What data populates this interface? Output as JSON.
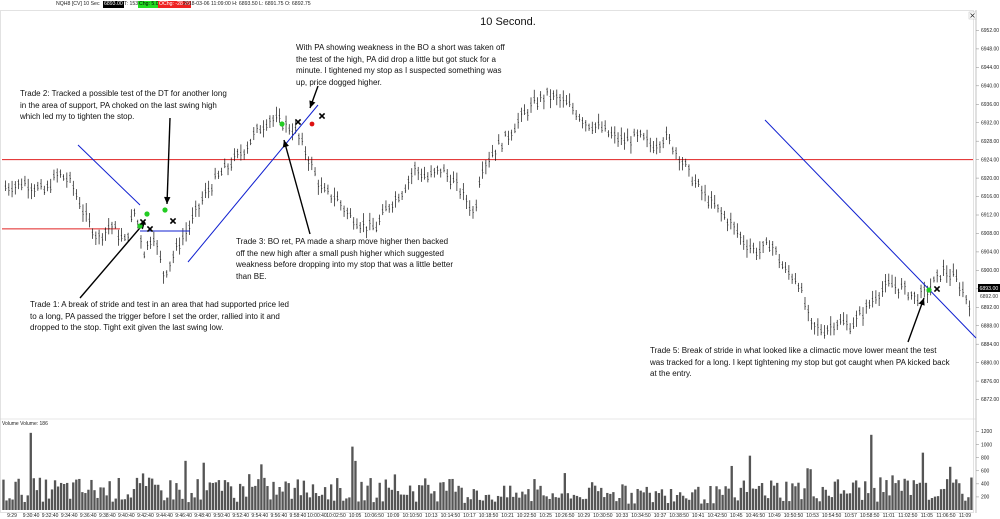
{
  "header": {
    "left_text": "NQH8 [CV] 10 Sec",
    "price_box": "6893.00",
    "tick_text": "T: 153",
    "chg_box": "Chg: 5.00",
    "ochg_box": "OChg: -28.25",
    "ohlc_text": "2018-03-06 11:09:00 H: 6893.50 L: 6891.75 O: 6892.75"
  },
  "chart_title": "10 Second.",
  "volume_label": "Volume  Volume: 186",
  "colors": {
    "price_bar": "#111111",
    "support_line": "#e02020",
    "trend_line": "#1020d0",
    "entry_green": "#22cc22",
    "entry_red": "#dd1111",
    "volume_bar": "#555555",
    "header_green": "#22dd22",
    "header_red": "#ee2222"
  },
  "annotations": {
    "trade1": "Trade 1:  A break of stride and test in an area that had supported price led to a long, PA passed the trigger before I set the order, rallied into it and dropped to the stop.  Tight exit given the last swing low.",
    "trade2": "Trade 2:  Tracked a possible test of the DT for another long in the area of support,  PA choked on the last swing high which led my to tighten the stop.",
    "trade3": "Trade 3:  BO ret, PA made a sharp move higher then backed off the new high after a small push higher which suggested weakness before dropping into my stop that was a little better than BE.",
    "trade4": "With PA showing weakness in the BO a short was taken off the test of the high, PA did drop a little but got stuck for a minute.  I tightened my stop as I suspected something was up, price dogged higher.",
    "trade5": "Trade 5:  Break of stride in what looked like a climactic move lower meant the test was tracked for a long.  I kept tightening my stop but got caught when PA kicked back at the entry."
  },
  "chart_data": {
    "type": "bar",
    "title": "10 Second.",
    "ylim": [
      6868,
      6956
    ],
    "y_ticks": [
      6952,
      6948,
      6944,
      6940,
      6936,
      6932,
      6928,
      6924,
      6920,
      6916,
      6912,
      6908,
      6904,
      6900,
      6896,
      6892,
      6888,
      6884,
      6880,
      6876,
      6872
    ],
    "current_price": "6893.00",
    "current_price_alt": "6892.00",
    "x_labels": [
      "9:29",
      "9:30:40",
      "9:32:40",
      "9:34:40",
      "9:36:40",
      "9:38:40",
      "9:40:40",
      "9:42:40",
      "9:44:40",
      "9:46:40",
      "9:48:40",
      "9:50:40",
      "9:52:40",
      "9:54:40",
      "9:56:40",
      "9:58:40",
      "10:00:40",
      "10:02:50",
      "10:05",
      "10:06:50",
      "10:09",
      "10:10:50",
      "10:13",
      "10:14:50",
      "10:17",
      "10:18:50",
      "10:21",
      "10:22:50",
      "10:25",
      "10:26:50",
      "10:29",
      "10:30:50",
      "10:33",
      "10:34:50",
      "10:37",
      "10:38:50",
      "10:41",
      "10:42:50",
      "10:45",
      "10:46:50",
      "10:49",
      "10:50:50",
      "10:53",
      "10:54:50",
      "10:57",
      "10:58:50",
      "11:01",
      "11:02:50",
      "11:05",
      "11:06:50",
      "11:09"
    ],
    "price_path": [
      [
        0,
        6918
      ],
      [
        1.5,
        6919
      ],
      [
        3,
        6917
      ],
      [
        4,
        6921
      ],
      [
        5,
        6919
      ],
      [
        6,
        6912
      ],
      [
        7,
        6907
      ],
      [
        8,
        6910
      ],
      [
        9,
        6906
      ],
      [
        9.8,
        6913
      ],
      [
        10.5,
        6904
      ],
      [
        11.2,
        6908
      ],
      [
        12,
        6899
      ],
      [
        13,
        6905
      ],
      [
        14,
        6910
      ],
      [
        15,
        6916
      ],
      [
        16,
        6920
      ],
      [
        17,
        6923
      ],
      [
        18,
        6926
      ],
      [
        19,
        6930
      ],
      [
        20,
        6933
      ],
      [
        21,
        6932
      ],
      [
        22,
        6930
      ],
      [
        23,
        6924
      ],
      [
        24,
        6917
      ],
      [
        25,
        6916
      ],
      [
        26,
        6912
      ],
      [
        27,
        6910
      ],
      [
        28,
        6909
      ],
      [
        29,
        6914
      ],
      [
        30,
        6917
      ],
      [
        31,
        6922
      ],
      [
        32,
        6920
      ],
      [
        33,
        6922
      ],
      [
        34,
        6919
      ],
      [
        35,
        6915
      ],
      [
        35.5,
        6912
      ],
      [
        36,
        6922
      ],
      [
        37,
        6926
      ],
      [
        38,
        6929
      ],
      [
        39,
        6933
      ],
      [
        40,
        6936
      ],
      [
        41,
        6938
      ],
      [
        42,
        6937
      ],
      [
        43,
        6935
      ],
      [
        44,
        6932
      ],
      [
        45,
        6931
      ],
      [
        46,
        6929
      ],
      [
        47,
        6928
      ],
      [
        48,
        6929
      ],
      [
        49,
        6927
      ],
      [
        50,
        6929
      ],
      [
        51,
        6925
      ],
      [
        52,
        6920
      ],
      [
        53,
        6916
      ],
      [
        54,
        6913
      ],
      [
        55,
        6910
      ],
      [
        56,
        6906
      ],
      [
        57,
        6904
      ],
      [
        58,
        6906
      ],
      [
        59,
        6900
      ],
      [
        60,
        6898
      ],
      [
        61,
        6888
      ],
      [
        62,
        6887
      ],
      [
        63,
        6889
      ],
      [
        64,
        6888
      ],
      [
        65,
        6891
      ],
      [
        66,
        6895
      ],
      [
        67,
        6897
      ],
      [
        68,
        6896
      ],
      [
        69,
        6894
      ],
      [
        70,
        6896
      ],
      [
        71,
        6900
      ],
      [
        72,
        6898
      ],
      [
        73,
        6893
      ]
    ],
    "volume": {
      "label": "Volume",
      "last": 186,
      "y_ticks": [
        1200,
        1000,
        800,
        600,
        400,
        200
      ]
    },
    "support_levels": [
      6924,
      6909
    ],
    "markers": {
      "green_entries": 5,
      "red_entries": 1,
      "exits": 6
    }
  }
}
